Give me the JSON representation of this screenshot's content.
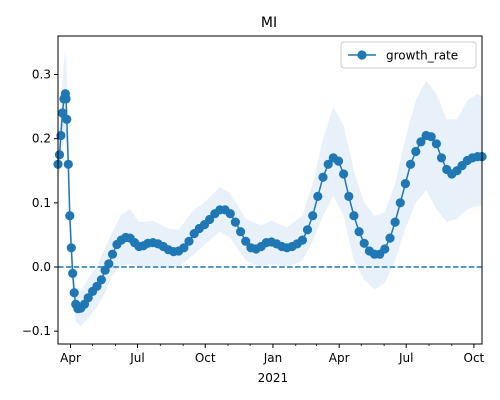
{
  "chart_data": {
    "type": "line",
    "title": "MI",
    "xlabel": "",
    "ylabel": "",
    "x_range": [
      "2020-03-15",
      "2021-10-12"
    ],
    "ylim": [
      -0.12,
      0.36
    ],
    "y_ticks": [
      -0.1,
      0.0,
      0.1,
      0.2,
      0.3
    ],
    "y_tick_labels": [
      "−0.1",
      "0.0",
      "0.1",
      "0.2",
      "0.3"
    ],
    "x_ticks": [
      {
        "date": "2020-04-01",
        "label": "Apr"
      },
      {
        "date": "2020-07-01",
        "label": "Jul"
      },
      {
        "date": "2020-10-01",
        "label": "Oct"
      },
      {
        "date": "2021-01-01",
        "label": "Jan"
      },
      {
        "date": "2021-04-01",
        "label": "Apr"
      },
      {
        "date": "2021-07-01",
        "label": "Jul"
      },
      {
        "date": "2021-10-01",
        "label": "Oct"
      }
    ],
    "x_year_label": {
      "date": "2021-01-01",
      "label": "2021"
    },
    "minor_tick_dates": [
      "2020-05-01",
      "2020-06-01",
      "2020-08-01",
      "2020-09-01",
      "2020-11-01",
      "2020-12-01",
      "2021-02-01",
      "2021-03-01",
      "2021-05-01",
      "2021-06-01",
      "2021-08-01",
      "2021-09-01"
    ],
    "grid": false,
    "legend": {
      "position": "top-right"
    },
    "reference_line": {
      "y": 0.0,
      "style": "dashed",
      "color": "#1f77b4"
    },
    "colors": {
      "series": "#1f77b4",
      "band": "#d6e6f4"
    },
    "series": [
      {
        "name": "growth_rate",
        "marker": "circle",
        "points": [
          [
            "2020-03-15",
            0.16
          ],
          [
            "2020-03-17",
            0.175
          ],
          [
            "2020-03-19",
            0.205
          ],
          [
            "2020-03-21",
            0.24
          ],
          [
            "2020-03-23",
            0.262
          ],
          [
            "2020-03-25",
            0.27
          ],
          [
            "2020-03-26",
            0.262
          ],
          [
            "2020-03-27",
            0.23
          ],
          [
            "2020-03-29",
            0.16
          ],
          [
            "2020-03-31",
            0.08
          ],
          [
            "2020-04-02",
            0.03
          ],
          [
            "2020-04-04",
            -0.01
          ],
          [
            "2020-04-06",
            -0.04
          ],
          [
            "2020-04-08",
            -0.058
          ],
          [
            "2020-04-11",
            -0.065
          ],
          [
            "2020-04-15",
            -0.064
          ],
          [
            "2020-04-20",
            -0.058
          ],
          [
            "2020-04-25",
            -0.048
          ],
          [
            "2020-05-01",
            -0.038
          ],
          [
            "2020-05-07",
            -0.03
          ],
          [
            "2020-05-13",
            -0.02
          ],
          [
            "2020-05-18",
            -0.005
          ],
          [
            "2020-05-23",
            0.005
          ],
          [
            "2020-05-28",
            0.02
          ],
          [
            "2020-06-03",
            0.035
          ],
          [
            "2020-06-09",
            0.042
          ],
          [
            "2020-06-15",
            0.046
          ],
          [
            "2020-06-21",
            0.045
          ],
          [
            "2020-06-27",
            0.038
          ],
          [
            "2020-07-03",
            0.032
          ],
          [
            "2020-07-09",
            0.033
          ],
          [
            "2020-07-15",
            0.037
          ],
          [
            "2020-07-22",
            0.038
          ],
          [
            "2020-07-29",
            0.036
          ],
          [
            "2020-08-05",
            0.032
          ],
          [
            "2020-08-12",
            0.027
          ],
          [
            "2020-08-19",
            0.024
          ],
          [
            "2020-08-26",
            0.025
          ],
          [
            "2020-09-02",
            0.03
          ],
          [
            "2020-09-09",
            0.04
          ],
          [
            "2020-09-16",
            0.052
          ],
          [
            "2020-09-23",
            0.06
          ],
          [
            "2020-09-30",
            0.066
          ],
          [
            "2020-10-07",
            0.074
          ],
          [
            "2020-10-14",
            0.083
          ],
          [
            "2020-10-21",
            0.089
          ],
          [
            "2020-10-28",
            0.089
          ],
          [
            "2020-11-04",
            0.083
          ],
          [
            "2020-11-11",
            0.07
          ],
          [
            "2020-11-18",
            0.055
          ],
          [
            "2020-11-25",
            0.04
          ],
          [
            "2020-12-02",
            0.03
          ],
          [
            "2020-12-09",
            0.028
          ],
          [
            "2020-12-16",
            0.032
          ],
          [
            "2020-12-23",
            0.038
          ],
          [
            "2020-12-30",
            0.039
          ],
          [
            "2021-01-06",
            0.036
          ],
          [
            "2021-01-13",
            0.032
          ],
          [
            "2021-01-20",
            0.03
          ],
          [
            "2021-01-27",
            0.032
          ],
          [
            "2021-02-03",
            0.036
          ],
          [
            "2021-02-10",
            0.042
          ],
          [
            "2021-02-17",
            0.058
          ],
          [
            "2021-02-24",
            0.08
          ],
          [
            "2021-03-03",
            0.11
          ],
          [
            "2021-03-10",
            0.14
          ],
          [
            "2021-03-17",
            0.16
          ],
          [
            "2021-03-24",
            0.17
          ],
          [
            "2021-03-31",
            0.165
          ],
          [
            "2021-04-07",
            0.145
          ],
          [
            "2021-04-14",
            0.11
          ],
          [
            "2021-04-21",
            0.08
          ],
          [
            "2021-04-28",
            0.055
          ],
          [
            "2021-05-05",
            0.037
          ],
          [
            "2021-05-12",
            0.025
          ],
          [
            "2021-05-19",
            0.02
          ],
          [
            "2021-05-26",
            0.02
          ],
          [
            "2021-06-02",
            0.028
          ],
          [
            "2021-06-09",
            0.045
          ],
          [
            "2021-06-16",
            0.07
          ],
          [
            "2021-06-23",
            0.1
          ],
          [
            "2021-06-30",
            0.13
          ],
          [
            "2021-07-07",
            0.16
          ],
          [
            "2021-07-14",
            0.18
          ],
          [
            "2021-07-21",
            0.195
          ],
          [
            "2021-07-28",
            0.205
          ],
          [
            "2021-08-04",
            0.203
          ],
          [
            "2021-08-11",
            0.192
          ],
          [
            "2021-08-18",
            0.17
          ],
          [
            "2021-08-25",
            0.152
          ],
          [
            "2021-09-01",
            0.145
          ],
          [
            "2021-09-08",
            0.15
          ],
          [
            "2021-09-15",
            0.158
          ],
          [
            "2021-09-22",
            0.166
          ],
          [
            "2021-09-29",
            0.17
          ],
          [
            "2021-10-06",
            0.172
          ],
          [
            "2021-10-12",
            0.172
          ]
        ],
        "band": [
          [
            "2020-03-15",
            0.13,
            0.19
          ],
          [
            "2020-03-19",
            0.165,
            0.25
          ],
          [
            "2020-03-23",
            0.2,
            0.32
          ],
          [
            "2020-03-25",
            0.21,
            0.34
          ],
          [
            "2020-03-27",
            0.18,
            0.29
          ],
          [
            "2020-03-31",
            0.04,
            0.12
          ],
          [
            "2020-04-04",
            -0.04,
            0.02
          ],
          [
            "2020-04-08",
            -0.085,
            -0.03
          ],
          [
            "2020-04-15",
            -0.092,
            -0.038
          ],
          [
            "2020-04-25",
            -0.08,
            -0.018
          ],
          [
            "2020-05-07",
            -0.062,
            0.002
          ],
          [
            "2020-05-18",
            -0.04,
            0.03
          ],
          [
            "2020-05-28",
            -0.012,
            0.055
          ],
          [
            "2020-06-09",
            0.002,
            0.082
          ],
          [
            "2020-06-21",
            0.005,
            0.09
          ],
          [
            "2020-07-03",
            0.0,
            0.07
          ],
          [
            "2020-07-22",
            0.002,
            0.072
          ],
          [
            "2020-08-12",
            0.0,
            0.06
          ],
          [
            "2020-08-26",
            0.0,
            0.058
          ],
          [
            "2020-09-16",
            0.02,
            0.09
          ],
          [
            "2020-09-30",
            0.035,
            0.1
          ],
          [
            "2020-10-21",
            0.055,
            0.125
          ],
          [
            "2020-11-04",
            0.045,
            0.115
          ],
          [
            "2020-11-25",
            0.01,
            0.075
          ],
          [
            "2020-12-16",
            0.0,
            0.065
          ],
          [
            "2020-12-30",
            0.005,
            0.072
          ],
          [
            "2021-01-20",
            0.0,
            0.062
          ],
          [
            "2021-02-10",
            0.01,
            0.08
          ],
          [
            "2021-02-24",
            0.04,
            0.13
          ],
          [
            "2021-03-10",
            0.08,
            0.2
          ],
          [
            "2021-03-24",
            0.11,
            0.25
          ],
          [
            "2021-04-07",
            0.08,
            0.22
          ],
          [
            "2021-04-21",
            0.01,
            0.15
          ],
          [
            "2021-05-05",
            -0.02,
            0.1
          ],
          [
            "2021-05-19",
            -0.035,
            0.08
          ],
          [
            "2021-06-02",
            -0.025,
            0.085
          ],
          [
            "2021-06-16",
            0.01,
            0.13
          ],
          [
            "2021-06-30",
            0.06,
            0.2
          ],
          [
            "2021-07-14",
            0.1,
            0.26
          ],
          [
            "2021-07-28",
            0.12,
            0.29
          ],
          [
            "2021-08-11",
            0.09,
            0.27
          ],
          [
            "2021-08-25",
            0.07,
            0.23
          ],
          [
            "2021-09-08",
            0.075,
            0.23
          ],
          [
            "2021-09-22",
            0.09,
            0.26
          ],
          [
            "2021-10-06",
            0.095,
            0.27
          ],
          [
            "2021-10-12",
            0.095,
            0.265
          ]
        ]
      }
    ]
  }
}
